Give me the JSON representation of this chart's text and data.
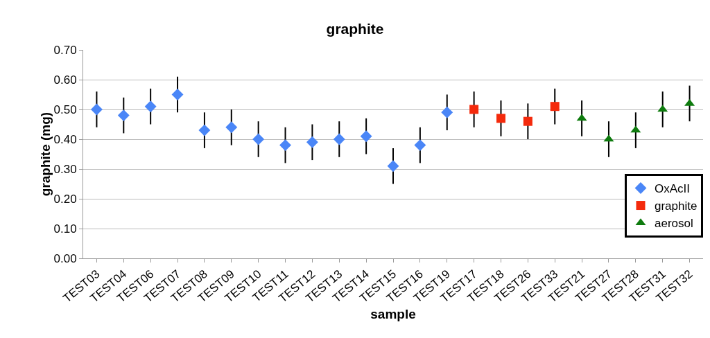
{
  "chart_data": {
    "type": "scatter",
    "title": "graphite",
    "xlabel": "sample",
    "ylabel": "graphite (mg)",
    "categories": [
      "TEST03",
      "TEST04",
      "TEST06",
      "TEST07",
      "TEST08",
      "TEST09",
      "TEST10",
      "TEST11",
      "TEST12",
      "TEST13",
      "TEST14",
      "TEST15",
      "TEST16",
      "TEST19",
      "TEST17",
      "TEST18",
      "TEST26",
      "TEST33",
      "TEST21",
      "TEST27",
      "TEST28",
      "TEST31",
      "TEST32"
    ],
    "ylim": [
      0,
      0.7
    ],
    "yticks": [
      {
        "value": 0,
        "label": "0.00"
      },
      {
        "value": 0.1,
        "label": "0.10"
      },
      {
        "value": 0.2,
        "label": "0.20"
      },
      {
        "value": 0.3,
        "label": "0.30"
      },
      {
        "value": 0.4,
        "label": "0.40"
      },
      {
        "value": 0.5,
        "label": "0.50"
      },
      {
        "value": 0.6,
        "label": "0.60"
      },
      {
        "value": 0.7,
        "label": "0.70"
      }
    ],
    "grid": "y",
    "legend": "bottom right",
    "series": [
      {
        "name": "OxAcII",
        "color": "#4a86f7",
        "marker": "diamond",
        "x": [
          "TEST03",
          "TEST04",
          "TEST06",
          "TEST07",
          "TEST08",
          "TEST09",
          "TEST10",
          "TEST11",
          "TEST12",
          "TEST13",
          "TEST14",
          "TEST15",
          "TEST16",
          "TEST19"
        ],
        "values": [
          0.5,
          0.48,
          0.51,
          0.55,
          0.43,
          0.44,
          0.4,
          0.38,
          0.39,
          0.4,
          0.41,
          0.31,
          0.38,
          0.49
        ],
        "errors": [
          0.06,
          0.06,
          0.06,
          0.06,
          0.06,
          0.06,
          0.06,
          0.06,
          0.06,
          0.06,
          0.06,
          0.06,
          0.06,
          0.06
        ]
      },
      {
        "name": "graphite",
        "color": "#f42a0c",
        "marker": "square",
        "x": [
          "TEST17",
          "TEST18",
          "TEST26",
          "TEST33"
        ],
        "values": [
          0.5,
          0.47,
          0.46,
          0.51
        ],
        "errors": [
          0.06,
          0.06,
          0.06,
          0.06
        ]
      },
      {
        "name": "aerosol",
        "color": "#0e7b0e",
        "marker": "triangle",
        "x": [
          "TEST21",
          "TEST27",
          "TEST28",
          "TEST31",
          "TEST32"
        ],
        "values": [
          0.47,
          0.4,
          0.43,
          0.5,
          0.52
        ],
        "errors": [
          0.06,
          0.06,
          0.06,
          0.06,
          0.06
        ]
      }
    ]
  }
}
